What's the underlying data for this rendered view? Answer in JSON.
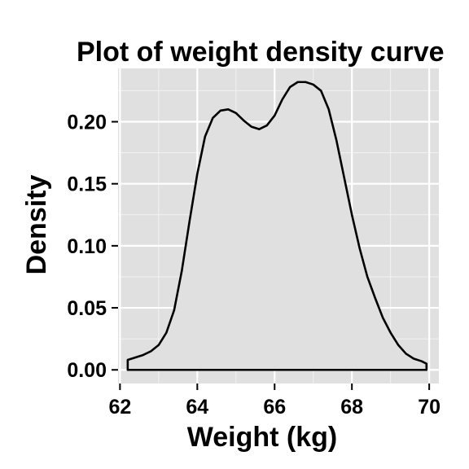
{
  "chart_data": {
    "type": "area",
    "title": "Plot of weight density curve",
    "xlabel": "Weight (kg)",
    "ylabel": "Density",
    "xlim": [
      61.95,
      70.25
    ],
    "ylim": [
      -0.011,
      0.243
    ],
    "xticks": [
      62,
      64,
      66,
      68,
      70
    ],
    "xtick_labels": [
      "62",
      "64",
      "66",
      "68",
      "70"
    ],
    "yticks": [
      0.0,
      0.05,
      0.1,
      0.15,
      0.2
    ],
    "ytick_labels": [
      "0.00",
      "0.05",
      "0.10",
      "0.15",
      "0.20"
    ],
    "grid": true,
    "panel_color": "#e0e0e0",
    "line_color": "#000000",
    "fill_color": "#e0e0e0",
    "x": [
      62.2,
      62.4,
      62.6,
      62.8,
      63.0,
      63.2,
      63.4,
      63.6,
      63.8,
      64.0,
      64.2,
      64.4,
      64.6,
      64.8,
      65.0,
      65.2,
      65.4,
      65.6,
      65.8,
      66.0,
      66.2,
      66.4,
      66.6,
      66.8,
      67.0,
      67.2,
      67.4,
      67.6,
      67.8,
      68.0,
      68.2,
      68.4,
      68.6,
      68.8,
      69.0,
      69.2,
      69.4,
      69.6,
      69.8,
      69.93
    ],
    "y": [
      0.008,
      0.01,
      0.012,
      0.015,
      0.02,
      0.03,
      0.048,
      0.08,
      0.12,
      0.158,
      0.188,
      0.203,
      0.209,
      0.21,
      0.207,
      0.201,
      0.196,
      0.194,
      0.197,
      0.205,
      0.218,
      0.228,
      0.232,
      0.232,
      0.23,
      0.225,
      0.21,
      0.185,
      0.155,
      0.125,
      0.098,
      0.075,
      0.058,
      0.042,
      0.03,
      0.02,
      0.013,
      0.009,
      0.007,
      0.005
    ]
  }
}
